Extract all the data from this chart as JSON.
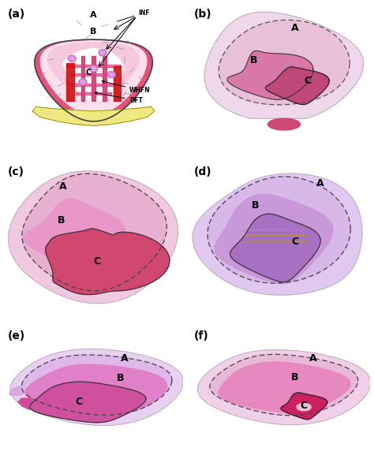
{
  "panels": [
    "(a)",
    "(b)",
    "(c)",
    "(d)",
    "(e)",
    "(f)"
  ],
  "background_color": "#ffffff",
  "panel_label_fontsize": 10,
  "figsize": [
    4.74,
    5.77
  ],
  "dpi": 100,
  "colors": {
    "hot_pink": "#e8507a",
    "light_pink": "#f8d8e8",
    "pale_pink": "#fce8f4",
    "medium_pink": "#e878a8",
    "dark_pink": "#c83868",
    "deep_pink": "#b02858",
    "yellow": "#f5f0a0",
    "light_purple": "#d8b8e8",
    "medium_purple": "#c090d0",
    "pale_purple": "#e8d0f0",
    "tissue_light": "#f4e0f0",
    "tissue_medium": "#e8c8e0",
    "red": "#cc0000",
    "dashed": "#333333",
    "outline": "#222222"
  }
}
